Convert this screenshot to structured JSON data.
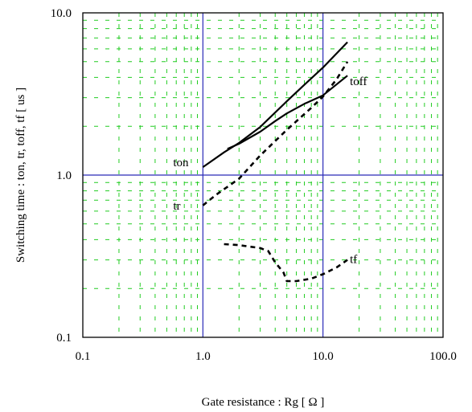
{
  "chart_data": {
    "type": "line",
    "title": "",
    "xlabel": "Gate resistance : Rg [ Ω ]",
    "ylabel": "Switching time : ton, tr, toff, tf [ us ]",
    "x_scale": "log",
    "y_scale": "log",
    "xlim": [
      0.1,
      100
    ],
    "ylim": [
      0.1,
      10
    ],
    "x_ticks": [
      "0.1",
      "1.0",
      "10.0",
      "100.0"
    ],
    "y_ticks": [
      "0.1",
      "1.0",
      "10.0"
    ],
    "grid": true,
    "legend": "none",
    "colors": {
      "major_grid": "#2a2ab8",
      "minor_grid": "#22cc22",
      "series": "#000000"
    },
    "series": [
      {
        "name": "ton",
        "style": "solid",
        "x": [
          1.0,
          1.5,
          2.0,
          3.0,
          5.0,
          7.0,
          10.0,
          16.0
        ],
        "y": [
          1.12,
          1.38,
          1.58,
          1.98,
          2.85,
          3.6,
          4.6,
          6.6
        ]
      },
      {
        "name": "toff",
        "style": "solid",
        "x": [
          1.6,
          2.0,
          3.0,
          4.0,
          5.0,
          7.0,
          10.0,
          16.0
        ],
        "y": [
          1.45,
          1.56,
          1.85,
          2.15,
          2.4,
          2.75,
          3.1,
          4.1
        ]
      },
      {
        "name": "tr",
        "style": "dashed",
        "x": [
          1.0,
          1.3,
          2.0,
          3.0,
          5.0,
          8.0,
          10.0,
          13.0,
          16.0
        ],
        "y": [
          0.65,
          0.76,
          0.95,
          1.32,
          1.9,
          2.6,
          3.05,
          3.9,
          5.0
        ]
      },
      {
        "name": "tf",
        "style": "dashed",
        "x": [
          1.5,
          2.0,
          3.0,
          3.5,
          4.0,
          4.7,
          5.0,
          6.0,
          8.0,
          10.0,
          13.0,
          16.0
        ],
        "y": [
          0.375,
          0.37,
          0.355,
          0.34,
          0.29,
          0.25,
          0.222,
          0.222,
          0.23,
          0.245,
          0.27,
          0.3
        ]
      }
    ]
  }
}
